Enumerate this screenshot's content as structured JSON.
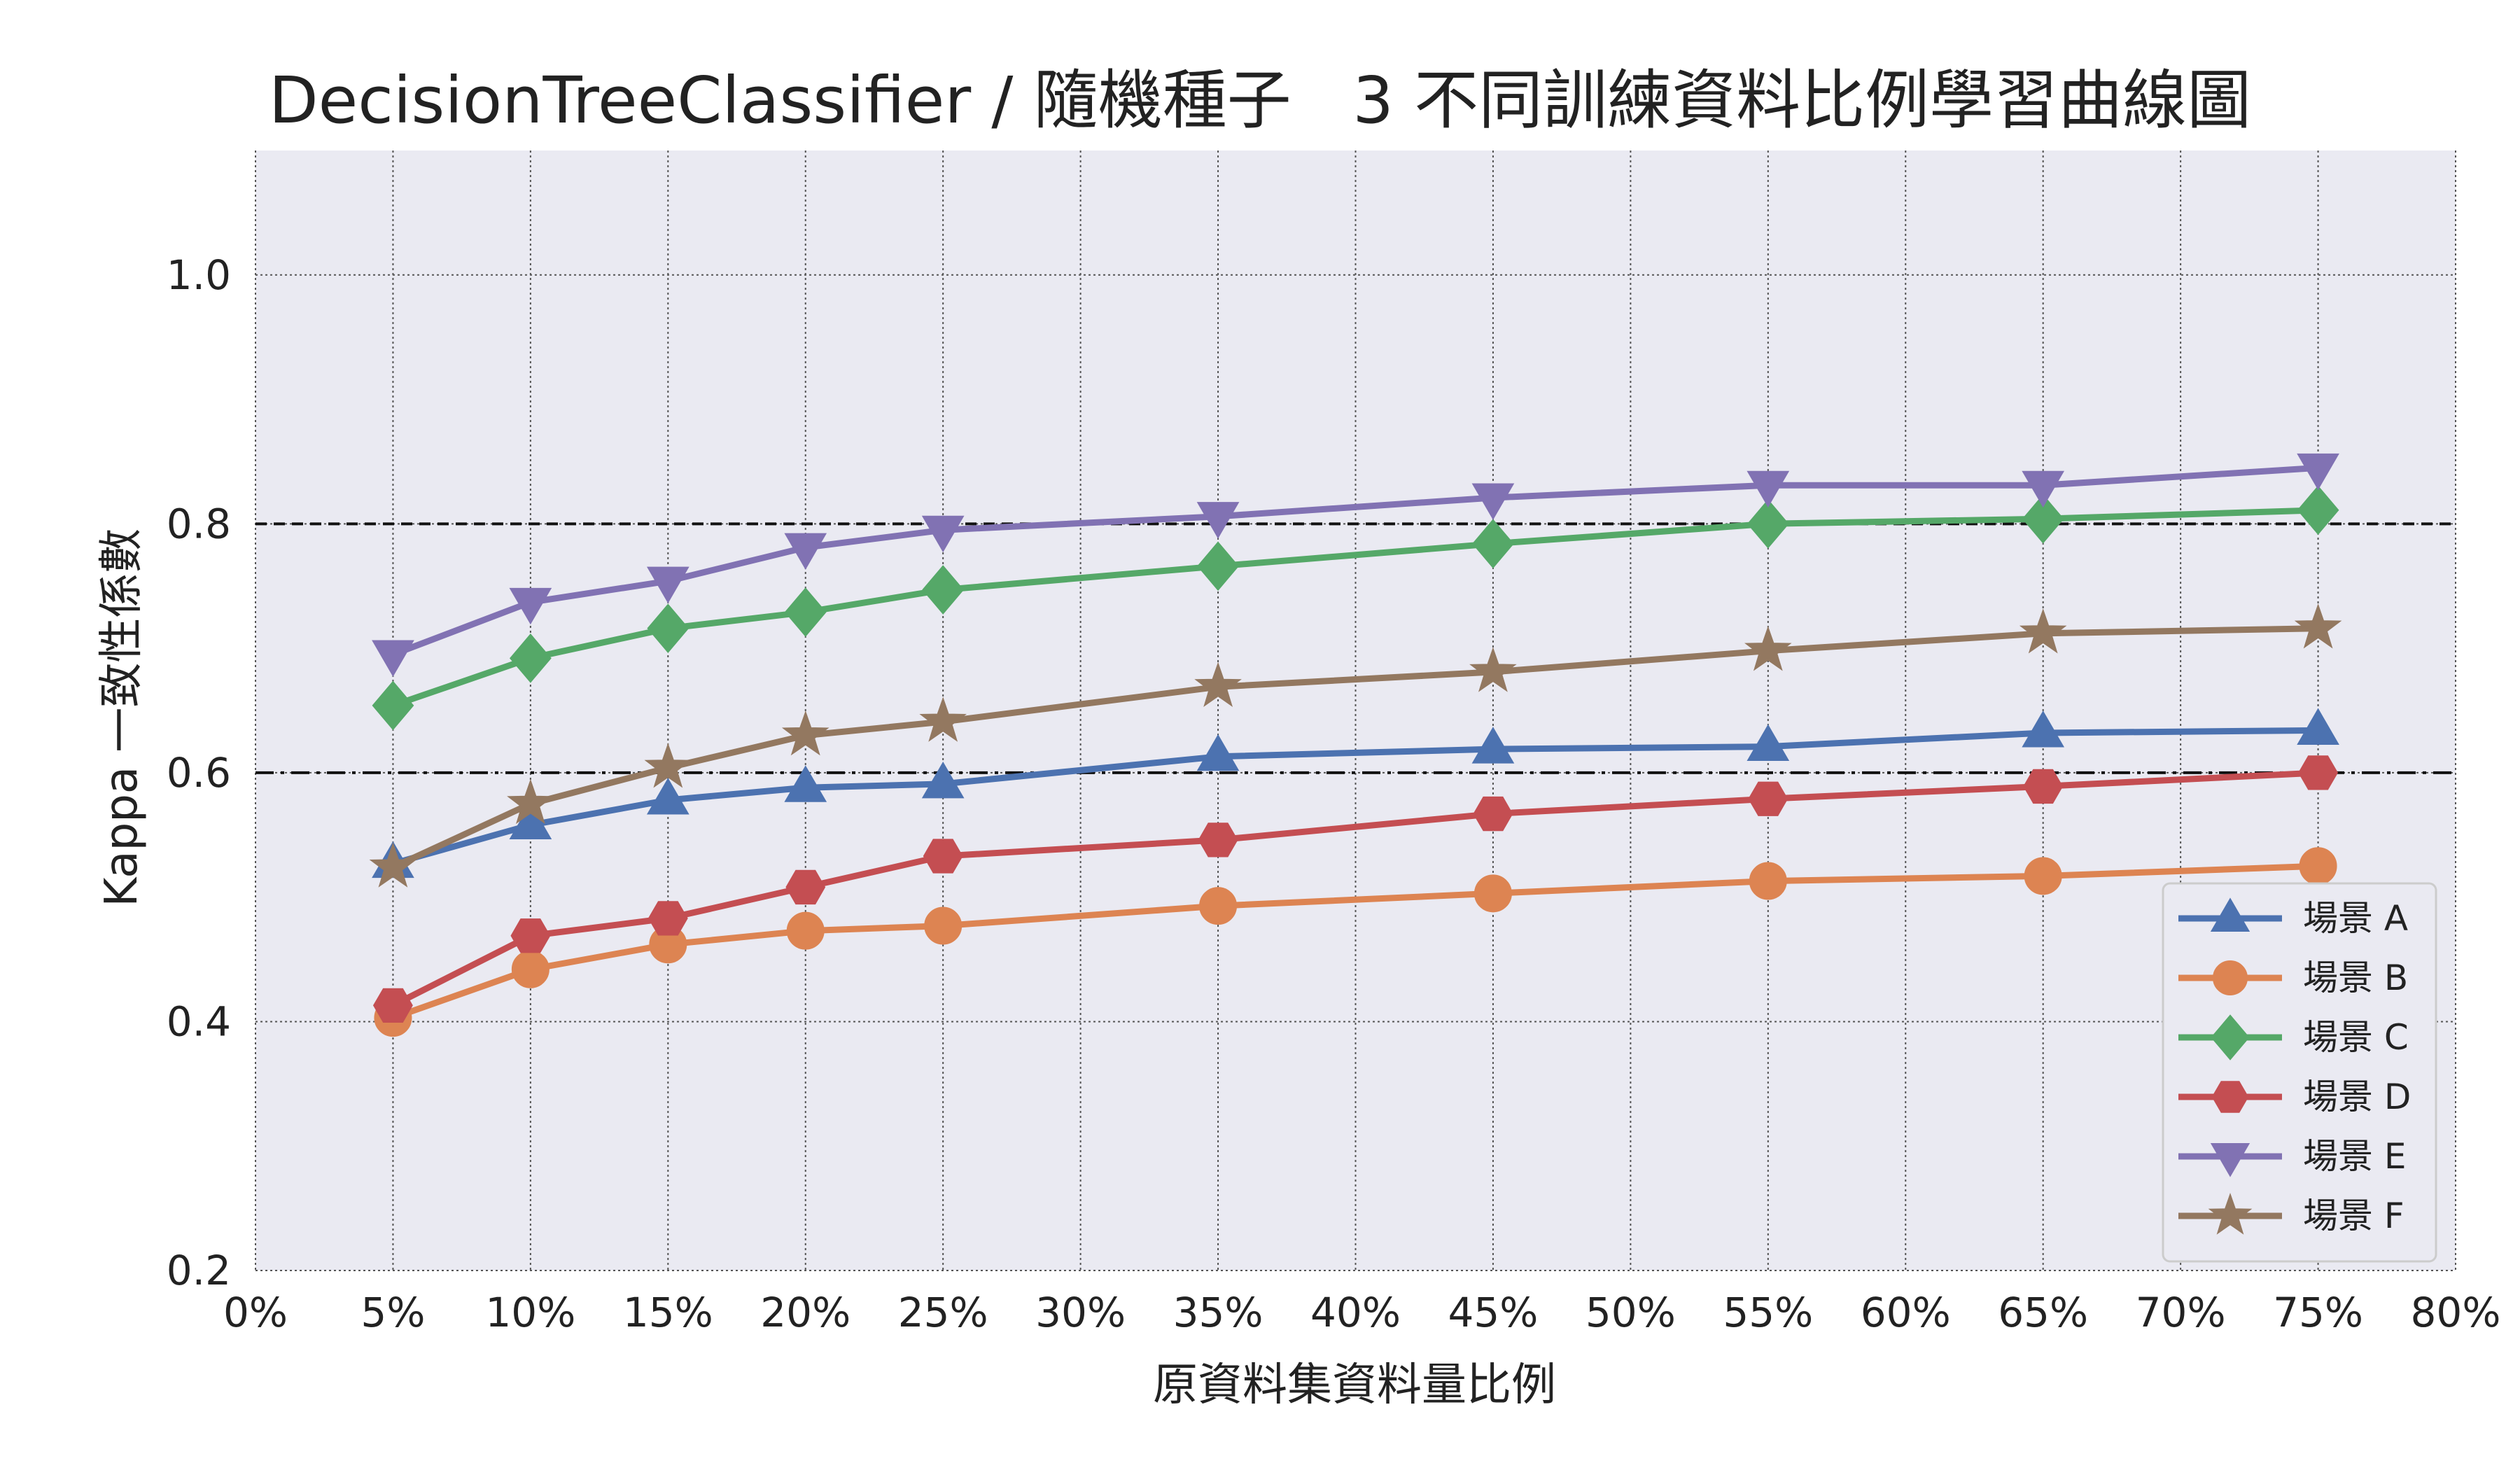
{
  "chart_data": {
    "type": "line",
    "title": "DecisionTreeClassifier / 隨機種子   3 不同訓練資料比例學習曲線圖",
    "xlabel": "原資料集資料量比例",
    "ylabel": "Kappa 一致性係數",
    "x": [
      5,
      10,
      15,
      20,
      25,
      35,
      45,
      55,
      65,
      75
    ],
    "xlim": [
      0,
      80
    ],
    "ylim": [
      0.2,
      1.1
    ],
    "x_ticks": [
      "0%",
      "5%",
      "10%",
      "15%",
      "20%",
      "25%",
      "30%",
      "35%",
      "40%",
      "45%",
      "50%",
      "55%",
      "60%",
      "65%",
      "70%",
      "75%",
      "80%"
    ],
    "y_ticks": [
      "0.2",
      "0.4",
      "0.6",
      "0.8",
      "1.0"
    ],
    "grid": true,
    "legend_position": "lower-right",
    "reference_lines": [
      {
        "y": 0.8,
        "style": "dashed"
      },
      {
        "y": 0.6,
        "style": "dashdot"
      }
    ],
    "series": [
      {
        "name": "場景 A",
        "color": "#4c72b0",
        "marker": "triangle-up",
        "values": [
          0.527,
          0.558,
          0.578,
          0.588,
          0.591,
          0.613,
          0.619,
          0.621,
          0.632,
          0.634
        ]
      },
      {
        "name": "場景 B",
        "color": "#dd8452",
        "marker": "circle",
        "values": [
          0.403,
          0.442,
          0.462,
          0.473,
          0.477,
          0.493,
          0.503,
          0.513,
          0.517,
          0.525
        ]
      },
      {
        "name": "場景 C",
        "color": "#55a868",
        "marker": "diamond",
        "values": [
          0.654,
          0.692,
          0.716,
          0.729,
          0.747,
          0.766,
          0.784,
          0.8,
          0.804,
          0.811
        ]
      },
      {
        "name": "場景 D",
        "color": "#c44e52",
        "marker": "hexagon",
        "values": [
          0.413,
          0.469,
          0.483,
          0.508,
          0.533,
          0.546,
          0.567,
          0.579,
          0.589,
          0.6
        ]
      },
      {
        "name": "場景 E",
        "color": "#8172b3",
        "marker": "triangle-down",
        "values": [
          0.695,
          0.737,
          0.754,
          0.781,
          0.795,
          0.806,
          0.821,
          0.831,
          0.831,
          0.845
        ]
      },
      {
        "name": "場景 F",
        "color": "#937860",
        "marker": "star",
        "values": [
          0.524,
          0.575,
          0.604,
          0.63,
          0.641,
          0.669,
          0.681,
          0.698,
          0.712,
          0.716
        ]
      }
    ]
  }
}
